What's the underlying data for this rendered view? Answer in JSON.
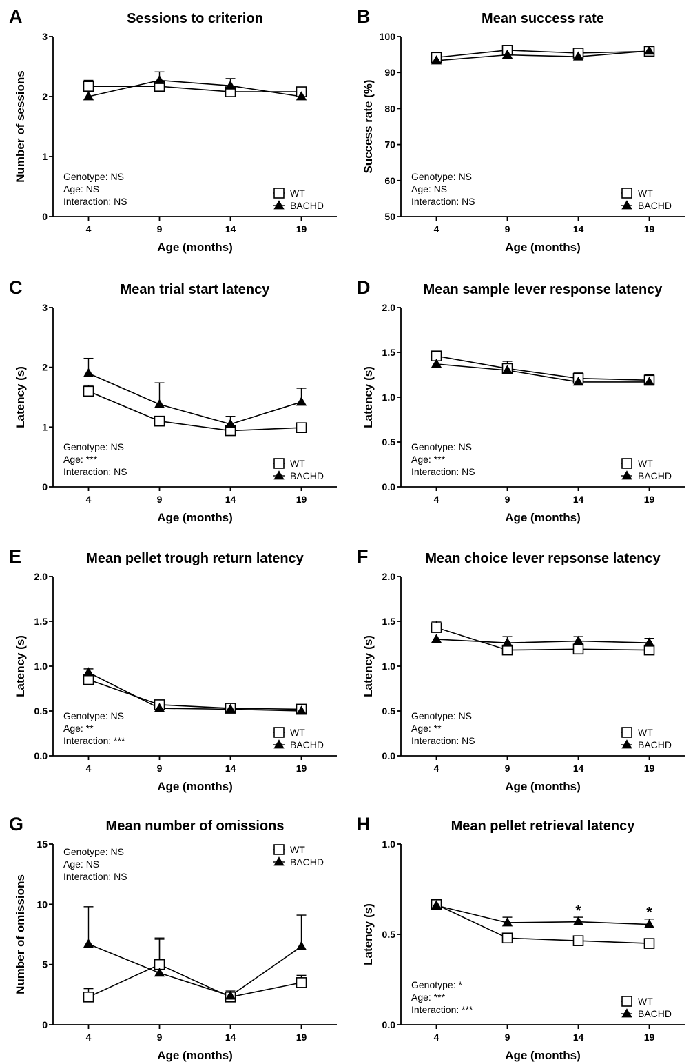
{
  "chart_data": [
    {
      "panel": "A",
      "type": "line",
      "title": "Sessions to criterion",
      "xlabel": "Age (months)",
      "ylabel": "Number of sessions",
      "x": [
        4,
        9,
        14,
        19
      ],
      "xlim": [
        1.5,
        21.5
      ],
      "ylim": [
        0,
        3
      ],
      "yticks": [
        0,
        1,
        2,
        3
      ],
      "ytick_labels": [
        "0",
        "1",
        "2",
        "3"
      ],
      "series": [
        {
          "name": "WT",
          "marker": "open-square",
          "values": [
            2.17,
            2.17,
            2.08,
            2.08
          ],
          "err": [
            0.1,
            0.0,
            0.0,
            0.0
          ]
        },
        {
          "name": "BACHD",
          "marker": "filled-triangle",
          "values": [
            2.0,
            2.27,
            2.18,
            2.0
          ],
          "err": [
            0.0,
            0.14,
            0.12,
            0.0
          ]
        }
      ],
      "stats": [
        "Genotype: NS",
        "Age: NS",
        "Interaction: NS"
      ],
      "stats_position": "bottom-left",
      "legend_position": "bottom-right",
      "significance": []
    },
    {
      "panel": "B",
      "type": "line",
      "title": "Mean success rate",
      "xlabel": "Age (months)",
      "ylabel": "Success rate (%)",
      "x": [
        4,
        9,
        14,
        19
      ],
      "xlim": [
        1.5,
        21.5
      ],
      "ylim": [
        50,
        100
      ],
      "yticks": [
        50,
        60,
        70,
        80,
        90,
        100
      ],
      "ytick_labels": [
        "50",
        "60",
        "70",
        "80",
        "90",
        "100"
      ],
      "series": [
        {
          "name": "WT",
          "marker": "open-square",
          "values": [
            94.2,
            96.2,
            95.4,
            95.9
          ],
          "err": [
            0.0,
            0.0,
            0.0,
            0.0
          ]
        },
        {
          "name": "BACHD",
          "marker": "filled-triangle",
          "values": [
            93.3,
            94.9,
            94.4,
            96.0
          ],
          "err": [
            0.0,
            0.0,
            0.0,
            0.0
          ]
        }
      ],
      "stats": [
        "Genotype: NS",
        "Age: NS",
        "Interaction: NS"
      ],
      "stats_position": "bottom-left",
      "legend_position": "bottom-right",
      "significance": []
    },
    {
      "panel": "C",
      "type": "line",
      "title": "Mean trial start latency",
      "xlabel": "Age (months)",
      "ylabel": "Latency (s)",
      "x": [
        4,
        9,
        14,
        19
      ],
      "xlim": [
        1.5,
        21.5
      ],
      "ylim": [
        0,
        3
      ],
      "yticks": [
        0,
        1,
        2,
        3
      ],
      "ytick_labels": [
        "0",
        "1",
        "2",
        "3"
      ],
      "series": [
        {
          "name": "WT",
          "marker": "open-square",
          "values": [
            1.6,
            1.1,
            0.94,
            0.99
          ],
          "err": [
            0.1,
            0.07,
            0.0,
            0.07
          ]
        },
        {
          "name": "BACHD",
          "marker": "filled-triangle",
          "values": [
            1.9,
            1.38,
            1.05,
            1.42
          ],
          "err": [
            0.25,
            0.36,
            0.13,
            0.23
          ]
        }
      ],
      "stats": [
        "Genotype: NS",
        "Age: ***",
        "Interaction: NS"
      ],
      "stats_position": "bottom-left",
      "legend_position": "bottom-right",
      "significance": []
    },
    {
      "panel": "D",
      "type": "line",
      "title": "Mean sample lever response latency",
      "xlabel": "Age (months)",
      "ylabel": "Latency (s)",
      "x": [
        4,
        9,
        14,
        19
      ],
      "xlim": [
        1.5,
        21.5
      ],
      "ylim": [
        0,
        2
      ],
      "yticks": [
        0,
        0.5,
        1,
        1.5,
        2
      ],
      "ytick_labels": [
        "0.0",
        "0.5",
        "1.0",
        "1.5",
        "2.0"
      ],
      "series": [
        {
          "name": "WT",
          "marker": "open-square",
          "values": [
            1.46,
            1.32,
            1.21,
            1.19
          ],
          "err": [
            0.03,
            0.08,
            0.06,
            0.06
          ]
        },
        {
          "name": "BACHD",
          "marker": "filled-triangle",
          "values": [
            1.37,
            1.3,
            1.17,
            1.17
          ],
          "err": [
            0.0,
            0.0,
            0.0,
            0.0
          ]
        }
      ],
      "stats": [
        "Genotype: NS",
        "Age: ***",
        "Interaction: NS"
      ],
      "stats_position": "bottom-left",
      "legend_position": "bottom-right",
      "significance": []
    },
    {
      "panel": "E",
      "type": "line",
      "title": "Mean pellet trough return latency",
      "xlabel": "Age (months)",
      "ylabel": "Latency (s)",
      "x": [
        4,
        9,
        14,
        19
      ],
      "xlim": [
        1.5,
        21.5
      ],
      "ylim": [
        0,
        2
      ],
      "yticks": [
        0,
        0.5,
        1,
        1.5,
        2
      ],
      "ytick_labels": [
        "0.0",
        "0.5",
        "1.0",
        "1.5",
        "2.0"
      ],
      "series": [
        {
          "name": "WT",
          "marker": "open-square",
          "values": [
            0.85,
            0.57,
            0.53,
            0.52
          ],
          "err": [
            0.0,
            0.0,
            0.0,
            0.0
          ]
        },
        {
          "name": "BACHD",
          "marker": "filled-triangle",
          "values": [
            0.93,
            0.53,
            0.52,
            0.5
          ],
          "err": [
            0.04,
            0.0,
            0.0,
            0.0
          ]
        }
      ],
      "stats": [
        "Genotype: NS",
        "Age: **",
        "Interaction: ***"
      ],
      "stats_position": "bottom-left",
      "legend_position": "bottom-right",
      "significance": []
    },
    {
      "panel": "F",
      "type": "line",
      "title": "Mean choice lever repsonse latency",
      "xlabel": "Age (months)",
      "ylabel": "Latency (s)",
      "x": [
        4,
        9,
        14,
        19
      ],
      "xlim": [
        1.5,
        21.5
      ],
      "ylim": [
        0,
        2
      ],
      "yticks": [
        0,
        0.5,
        1,
        1.5,
        2
      ],
      "ytick_labels": [
        "0.0",
        "0.5",
        "1.0",
        "1.5",
        "2.0"
      ],
      "series": [
        {
          "name": "WT",
          "marker": "open-square",
          "values": [
            1.43,
            1.18,
            1.19,
            1.18
          ],
          "err": [
            0.07,
            0.0,
            0.0,
            0.0
          ]
        },
        {
          "name": "BACHD",
          "marker": "filled-triangle",
          "values": [
            1.3,
            1.26,
            1.28,
            1.26
          ],
          "err": [
            0.0,
            0.07,
            0.05,
            0.05
          ]
        }
      ],
      "stats": [
        "Genotype: NS",
        "Age: **",
        "Interaction: NS"
      ],
      "stats_position": "bottom-left",
      "legend_position": "bottom-right",
      "significance": []
    },
    {
      "panel": "G",
      "type": "line",
      "title": "Mean number of omissions",
      "xlabel": "Age (months)",
      "ylabel": "Number of omissions",
      "x": [
        4,
        9,
        14,
        19
      ],
      "xlim": [
        1.5,
        21.5
      ],
      "ylim": [
        0,
        15
      ],
      "yticks": [
        0,
        5,
        10,
        15
      ],
      "ytick_labels": [
        "0",
        "5",
        "10",
        "15"
      ],
      "series": [
        {
          "name": "WT",
          "marker": "open-square",
          "values": [
            2.3,
            5.0,
            2.3,
            3.5
          ],
          "err": [
            0.7,
            2.2,
            0.5,
            0.6
          ]
        },
        {
          "name": "BACHD",
          "marker": "filled-triangle",
          "values": [
            6.7,
            4.3,
            2.4,
            6.5
          ],
          "err": [
            3.1,
            2.8,
            0.0,
            2.6
          ]
        }
      ],
      "stats": [
        "Genotype: NS",
        "Age: NS",
        "Interaction: NS"
      ],
      "stats_position": "top-left",
      "legend_position": "top-right",
      "significance": []
    },
    {
      "panel": "H",
      "type": "line",
      "title": "Mean pellet retrieval latency",
      "xlabel": "Age (months)",
      "ylabel": "Latency (s)",
      "x": [
        4,
        9,
        14,
        19
      ],
      "xlim": [
        1.5,
        21.5
      ],
      "ylim": [
        0,
        1
      ],
      "yticks": [
        0,
        0.5,
        1
      ],
      "ytick_labels": [
        "0.0",
        "0.5",
        "1.0"
      ],
      "series": [
        {
          "name": "WT",
          "marker": "open-square",
          "values": [
            0.665,
            0.48,
            0.465,
            0.45
          ],
          "err": [
            0.0,
            0.0,
            0.0,
            0.0
          ]
        },
        {
          "name": "BACHD",
          "marker": "filled-triangle",
          "values": [
            0.66,
            0.565,
            0.57,
            0.555
          ],
          "err": [
            0.0,
            0.03,
            0.025,
            0.03
          ]
        }
      ],
      "stats": [
        "Genotype: *",
        "Age: ***",
        "Interaction: ***"
      ],
      "stats_position": "bottom-left",
      "legend_position": "bottom-right",
      "significance": [
        {
          "x": 14,
          "label": "*"
        },
        {
          "x": 19,
          "label": "*"
        }
      ]
    }
  ]
}
